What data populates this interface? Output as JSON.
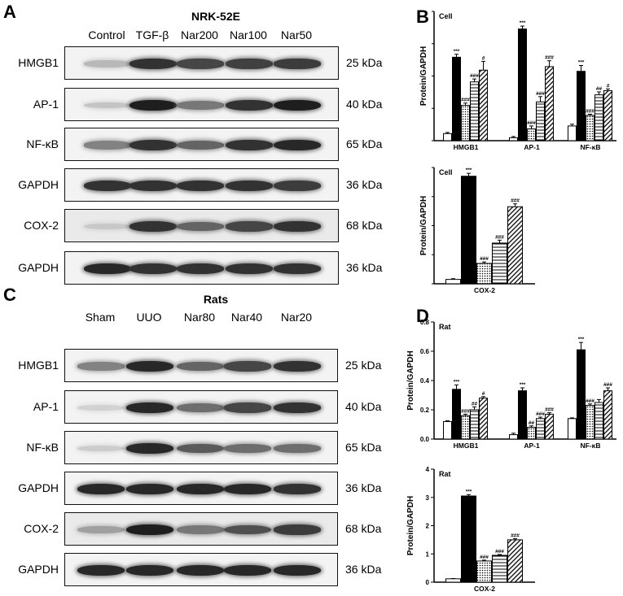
{
  "panels": {
    "A": {
      "letter": "A",
      "title": "NRK-52E",
      "lanes": [
        "Control",
        "TGF-β",
        "Nar200",
        "Nar100",
        "Nar50"
      ],
      "rows": [
        {
          "label": "HMGB1",
          "kda": "25 kDa",
          "levels": [
            0.18,
            0.85,
            0.75,
            0.78,
            0.8
          ]
        },
        {
          "label": "AP-1",
          "kda": "40 kDa",
          "levels": [
            0.12,
            0.95,
            0.5,
            0.85,
            0.95
          ]
        },
        {
          "label": "NF-κB",
          "kda": "65 kDa",
          "levels": [
            0.45,
            0.85,
            0.6,
            0.85,
            0.9
          ]
        },
        {
          "label": "GAPDH",
          "kda": "36 kDa",
          "levels": [
            0.85,
            0.85,
            0.85,
            0.85,
            0.8
          ]
        },
        {
          "label": "COX-2",
          "kda": "68 kDa",
          "levels": [
            0.1,
            0.85,
            0.6,
            0.75,
            0.85
          ]
        },
        {
          "label": "GAPDH",
          "kda": "36 kDa",
          "levels": [
            0.9,
            0.85,
            0.85,
            0.85,
            0.85
          ]
        }
      ]
    },
    "C": {
      "letter": "C",
      "title": "Rats",
      "lanes": [
        "Sham",
        "UUO",
        "Nar80",
        "Nar40",
        "Nar20"
      ],
      "rows": [
        {
          "label": "HMGB1",
          "kda": "25 kDa",
          "levels": [
            0.45,
            0.9,
            0.6,
            0.75,
            0.85
          ]
        },
        {
          "label": "AP-1",
          "kda": "40 kDa",
          "levels": [
            0.05,
            0.9,
            0.55,
            0.75,
            0.85
          ]
        },
        {
          "label": "NF-κB",
          "kda": "65 kDa",
          "levels": [
            0.08,
            0.9,
            0.65,
            0.55,
            0.55
          ]
        },
        {
          "label": "GAPDH",
          "kda": "36 kDa",
          "levels": [
            0.9,
            0.9,
            0.9,
            0.9,
            0.85
          ]
        },
        {
          "label": "COX-2",
          "kda": "68 kDa",
          "levels": [
            0.3,
            0.95,
            0.5,
            0.7,
            0.8
          ]
        },
        {
          "label": "GAPDH",
          "kda": "36 kDa",
          "levels": [
            0.9,
            0.9,
            0.9,
            0.9,
            0.9
          ]
        }
      ]
    },
    "B": {
      "letter": "B"
    },
    "D": {
      "letter": "D"
    }
  },
  "chart_data": [
    {
      "type": "bar",
      "panel": "B-top",
      "title": "Cell",
      "ylabel": "Protein/GAPDH",
      "ylim": [
        0,
        2.2
      ],
      "categories": [
        "HMGB1",
        "AP-1",
        "NF-κB"
      ],
      "series_patterns": [
        "white",
        "black",
        "dots",
        "horizontal-lines",
        "diagonal-lines"
      ],
      "values": [
        [
          0.12,
          1.42,
          0.6,
          1.0,
          1.2
        ],
        [
          0.05,
          1.9,
          0.2,
          0.66,
          1.26
        ],
        [
          0.25,
          1.18,
          0.43,
          0.78,
          0.85
        ]
      ],
      "errors": [
        [
          0.02,
          0.05,
          0.04,
          0.05,
          0.15
        ],
        [
          0.02,
          0.05,
          0.05,
          0.09,
          0.1
        ],
        [
          0.03,
          0.1,
          0.02,
          0.05,
          0.03
        ]
      ],
      "sig": [
        [
          "",
          "***",
          "###",
          "###",
          "#"
        ],
        [
          "",
          "***",
          "###",
          "###",
          "###"
        ],
        [
          "",
          "***",
          "###",
          "##",
          "#"
        ]
      ],
      "show_y_ticks": false
    },
    {
      "type": "bar",
      "panel": "B-bottom",
      "title": "Cell",
      "ylabel": "Protein/GAPDH",
      "ylim": [
        0,
        0.8
      ],
      "categories": [
        "COX-2"
      ],
      "series_patterns": [
        "white",
        "black",
        "dots",
        "horizontal-lines",
        "diagonal-lines"
      ],
      "values": [
        [
          0.03,
          0.74,
          0.14,
          0.28,
          0.53
        ]
      ],
      "errors": [
        [
          0.005,
          0.02,
          0.01,
          0.02,
          0.02
        ]
      ],
      "sig": [
        [
          "",
          "***",
          "###",
          "###",
          "###"
        ]
      ],
      "show_y_ticks": false
    },
    {
      "type": "bar",
      "panel": "D-top",
      "title": "Rat",
      "ylabel": "Protein/GAPDH",
      "ylim": [
        0,
        0.8
      ],
      "yticks": [
        "0.0",
        "0.2",
        "0.4",
        "0.6",
        "0.8"
      ],
      "categories": [
        "HMGB1",
        "AP-1",
        "NF-κB"
      ],
      "series_patterns": [
        "white",
        "black",
        "dots",
        "horizontal-lines",
        "diagonal-lines"
      ],
      "values": [
        [
          0.12,
          0.34,
          0.16,
          0.2,
          0.28
        ],
        [
          0.03,
          0.33,
          0.08,
          0.14,
          0.17
        ],
        [
          0.14,
          0.61,
          0.23,
          0.25,
          0.33
        ]
      ],
      "errors": [
        [
          0.005,
          0.03,
          0.01,
          0.02,
          0.01
        ],
        [
          0.01,
          0.02,
          0.01,
          0.01,
          0.01
        ],
        [
          0.005,
          0.05,
          0.01,
          0.02,
          0.02
        ]
      ],
      "sig": [
        [
          "",
          "***",
          "###",
          "##",
          "#"
        ],
        [
          "",
          "***",
          "##",
          "###",
          "###"
        ],
        [
          "",
          "***",
          "###",
          "",
          "###"
        ]
      ],
      "show_y_ticks": true
    },
    {
      "type": "bar",
      "panel": "D-bottom",
      "title": "Rat",
      "ylabel": "Protein/GAPDH",
      "ylim": [
        0,
        4
      ],
      "yticks": [
        "0",
        "1",
        "2",
        "3",
        "4"
      ],
      "categories": [
        "COX-2"
      ],
      "series_patterns": [
        "white",
        "black",
        "dots",
        "horizontal-lines",
        "diagonal-lines"
      ],
      "values": [
        [
          0.12,
          3.05,
          0.75,
          0.95,
          1.5
        ]
      ],
      "errors": [
        [
          0.01,
          0.05,
          0.03,
          0.03,
          0.04
        ]
      ],
      "sig": [
        [
          "",
          "***",
          "###",
          "###",
          "###"
        ]
      ],
      "show_y_ticks": true
    }
  ]
}
